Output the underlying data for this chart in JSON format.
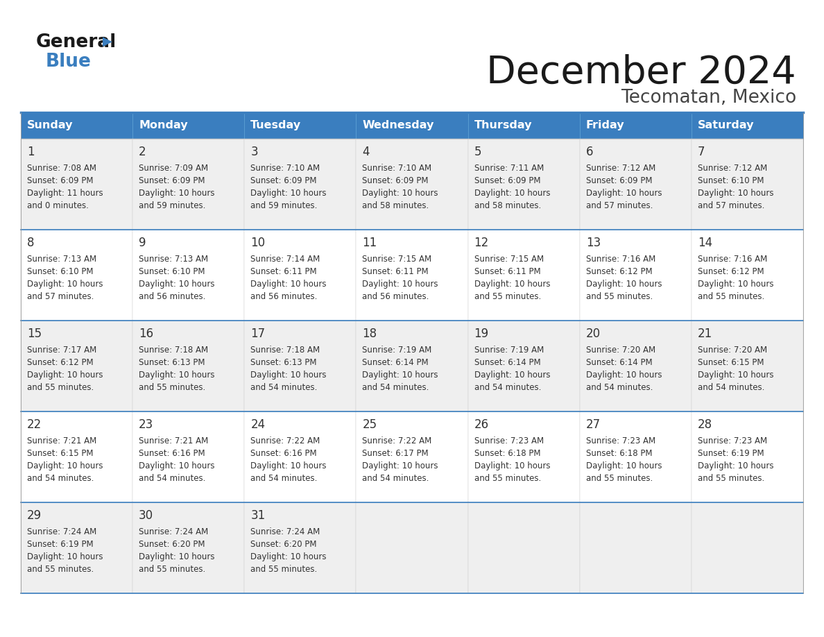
{
  "title": "December 2024",
  "subtitle": "Tecomatan, Mexico",
  "header_bg_color": "#3a7ebf",
  "header_text_color": "#ffffff",
  "cell_bg_color_odd": "#efefef",
  "cell_bg_color_even": "#ffffff",
  "border_color": "#3a7ebf",
  "text_color": "#333333",
  "days_of_week": [
    "Sunday",
    "Monday",
    "Tuesday",
    "Wednesday",
    "Thursday",
    "Friday",
    "Saturday"
  ],
  "calendar_data": [
    [
      {
        "day": 1,
        "sunrise": "7:08 AM",
        "sunset": "6:09 PM",
        "daylight_hours": 11,
        "daylight_minutes": 0
      },
      {
        "day": 2,
        "sunrise": "7:09 AM",
        "sunset": "6:09 PM",
        "daylight_hours": 10,
        "daylight_minutes": 59
      },
      {
        "day": 3,
        "sunrise": "7:10 AM",
        "sunset": "6:09 PM",
        "daylight_hours": 10,
        "daylight_minutes": 59
      },
      {
        "day": 4,
        "sunrise": "7:10 AM",
        "sunset": "6:09 PM",
        "daylight_hours": 10,
        "daylight_minutes": 58
      },
      {
        "day": 5,
        "sunrise": "7:11 AM",
        "sunset": "6:09 PM",
        "daylight_hours": 10,
        "daylight_minutes": 58
      },
      {
        "day": 6,
        "sunrise": "7:12 AM",
        "sunset": "6:09 PM",
        "daylight_hours": 10,
        "daylight_minutes": 57
      },
      {
        "day": 7,
        "sunrise": "7:12 AM",
        "sunset": "6:10 PM",
        "daylight_hours": 10,
        "daylight_minutes": 57
      }
    ],
    [
      {
        "day": 8,
        "sunrise": "7:13 AM",
        "sunset": "6:10 PM",
        "daylight_hours": 10,
        "daylight_minutes": 57
      },
      {
        "day": 9,
        "sunrise": "7:13 AM",
        "sunset": "6:10 PM",
        "daylight_hours": 10,
        "daylight_minutes": 56
      },
      {
        "day": 10,
        "sunrise": "7:14 AM",
        "sunset": "6:11 PM",
        "daylight_hours": 10,
        "daylight_minutes": 56
      },
      {
        "day": 11,
        "sunrise": "7:15 AM",
        "sunset": "6:11 PM",
        "daylight_hours": 10,
        "daylight_minutes": 56
      },
      {
        "day": 12,
        "sunrise": "7:15 AM",
        "sunset": "6:11 PM",
        "daylight_hours": 10,
        "daylight_minutes": 55
      },
      {
        "day": 13,
        "sunrise": "7:16 AM",
        "sunset": "6:12 PM",
        "daylight_hours": 10,
        "daylight_minutes": 55
      },
      {
        "day": 14,
        "sunrise": "7:16 AM",
        "sunset": "6:12 PM",
        "daylight_hours": 10,
        "daylight_minutes": 55
      }
    ],
    [
      {
        "day": 15,
        "sunrise": "7:17 AM",
        "sunset": "6:12 PM",
        "daylight_hours": 10,
        "daylight_minutes": 55
      },
      {
        "day": 16,
        "sunrise": "7:18 AM",
        "sunset": "6:13 PM",
        "daylight_hours": 10,
        "daylight_minutes": 55
      },
      {
        "day": 17,
        "sunrise": "7:18 AM",
        "sunset": "6:13 PM",
        "daylight_hours": 10,
        "daylight_minutes": 54
      },
      {
        "day": 18,
        "sunrise": "7:19 AM",
        "sunset": "6:14 PM",
        "daylight_hours": 10,
        "daylight_minutes": 54
      },
      {
        "day": 19,
        "sunrise": "7:19 AM",
        "sunset": "6:14 PM",
        "daylight_hours": 10,
        "daylight_minutes": 54
      },
      {
        "day": 20,
        "sunrise": "7:20 AM",
        "sunset": "6:14 PM",
        "daylight_hours": 10,
        "daylight_minutes": 54
      },
      {
        "day": 21,
        "sunrise": "7:20 AM",
        "sunset": "6:15 PM",
        "daylight_hours": 10,
        "daylight_minutes": 54
      }
    ],
    [
      {
        "day": 22,
        "sunrise": "7:21 AM",
        "sunset": "6:15 PM",
        "daylight_hours": 10,
        "daylight_minutes": 54
      },
      {
        "day": 23,
        "sunrise": "7:21 AM",
        "sunset": "6:16 PM",
        "daylight_hours": 10,
        "daylight_minutes": 54
      },
      {
        "day": 24,
        "sunrise": "7:22 AM",
        "sunset": "6:16 PM",
        "daylight_hours": 10,
        "daylight_minutes": 54
      },
      {
        "day": 25,
        "sunrise": "7:22 AM",
        "sunset": "6:17 PM",
        "daylight_hours": 10,
        "daylight_minutes": 54
      },
      {
        "day": 26,
        "sunrise": "7:23 AM",
        "sunset": "6:18 PM",
        "daylight_hours": 10,
        "daylight_minutes": 55
      },
      {
        "day": 27,
        "sunrise": "7:23 AM",
        "sunset": "6:18 PM",
        "daylight_hours": 10,
        "daylight_minutes": 55
      },
      {
        "day": 28,
        "sunrise": "7:23 AM",
        "sunset": "6:19 PM",
        "daylight_hours": 10,
        "daylight_minutes": 55
      }
    ],
    [
      {
        "day": 29,
        "sunrise": "7:24 AM",
        "sunset": "6:19 PM",
        "daylight_hours": 10,
        "daylight_minutes": 55
      },
      {
        "day": 30,
        "sunrise": "7:24 AM",
        "sunset": "6:20 PM",
        "daylight_hours": 10,
        "daylight_minutes": 55
      },
      {
        "day": 31,
        "sunrise": "7:24 AM",
        "sunset": "6:20 PM",
        "daylight_hours": 10,
        "daylight_minutes": 55
      },
      null,
      null,
      null,
      null
    ]
  ]
}
